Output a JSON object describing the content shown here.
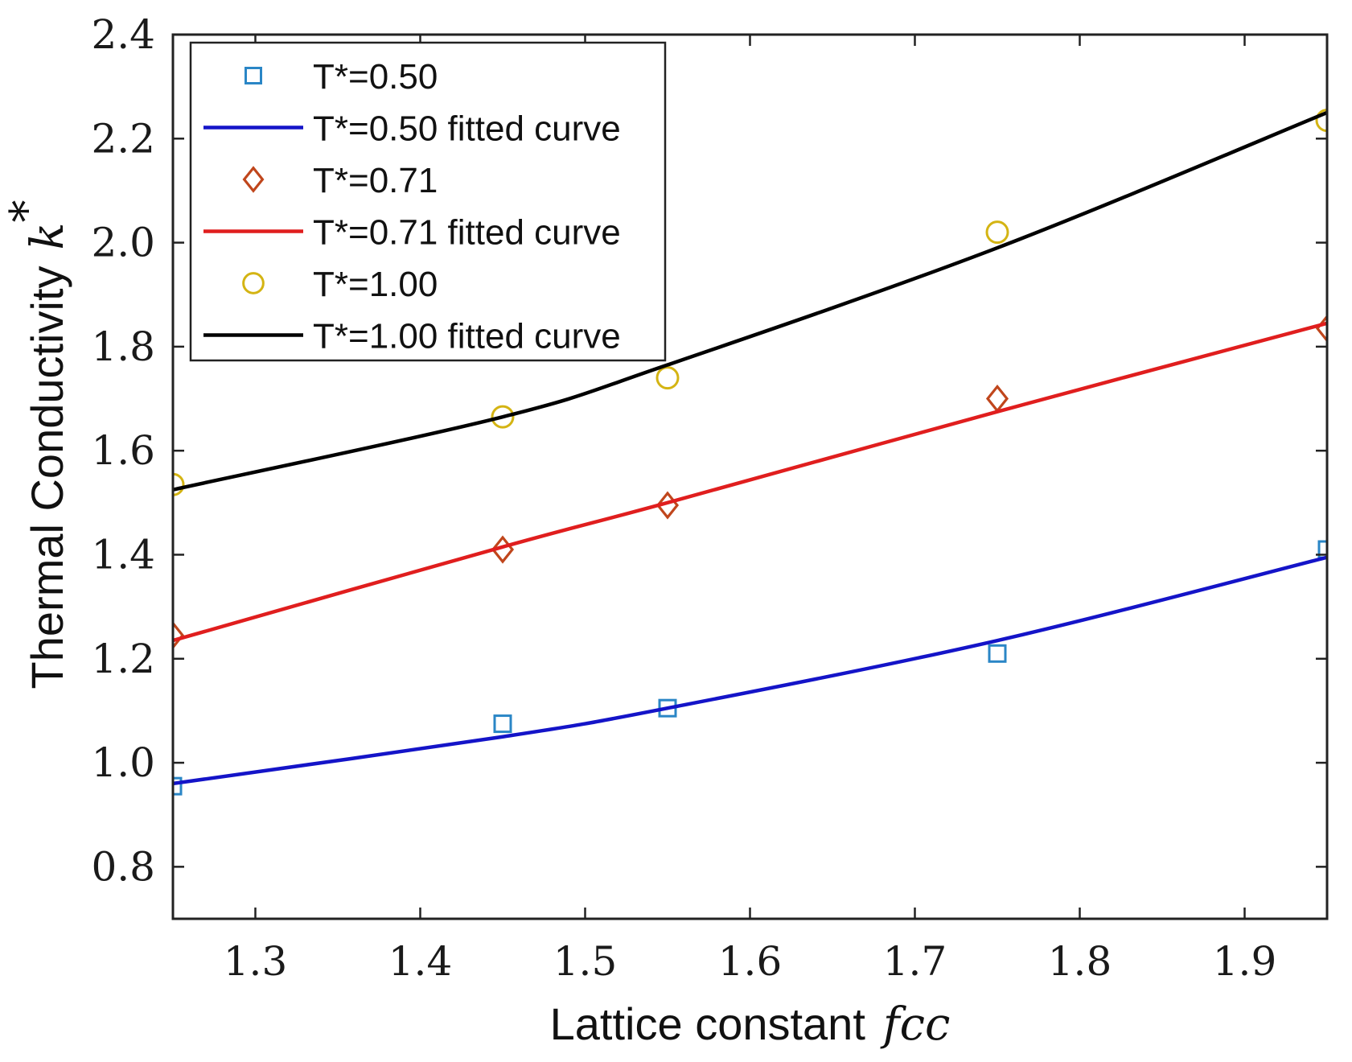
{
  "chart_data": {
    "type": "scatter",
    "xlabel": "Lattice constant",
    "xlabel_var": "fcc",
    "ylabel": "Thermal Conductivity",
    "ylabel_var": "k",
    "ylabel_superscript": "*",
    "xlim": [
      1.25,
      1.95
    ],
    "ylim": [
      0.7,
      2.4
    ],
    "xticks": [
      1.3,
      1.4,
      1.5,
      1.6,
      1.7,
      1.8,
      1.9
    ],
    "xtick_labels": [
      "1.3",
      "1.4",
      "1.5",
      "1.6",
      "1.7",
      "1.8",
      "1.9"
    ],
    "yticks": [
      0.8,
      1.0,
      1.2,
      1.4,
      1.6,
      1.8,
      2.0,
      2.2,
      2.4
    ],
    "ytick_labels": [
      "0.8",
      "1.0",
      "1.2",
      "1.4",
      "1.6",
      "1.8",
      "2.0",
      "2.2",
      "2.4"
    ],
    "grid": false,
    "legend_position": "top-left",
    "series": [
      {
        "name": "T*=0.50",
        "kind": "markers",
        "marker": "square",
        "color": "#2a86c6",
        "x": [
          1.25,
          1.45,
          1.55,
          1.75,
          1.95
        ],
        "y": [
          0.955,
          1.075,
          1.105,
          1.21,
          1.41
        ]
      },
      {
        "name": "T*=0.50 fitted curve",
        "kind": "line",
        "color": "#1414c8",
        "x": [
          1.25,
          1.45,
          1.55,
          1.75,
          1.95
        ],
        "y": [
          0.96,
          1.05,
          1.105,
          1.235,
          1.395
        ]
      },
      {
        "name": "T*=0.71",
        "kind": "markers",
        "marker": "diamond",
        "color": "#c0461c",
        "x": [
          1.25,
          1.45,
          1.55,
          1.75,
          1.95
        ],
        "y": [
          1.245,
          1.41,
          1.495,
          1.7,
          1.835
        ]
      },
      {
        "name": "T*=0.71 fitted curve",
        "kind": "line",
        "color": "#e01e1e",
        "x": [
          1.25,
          1.45,
          1.55,
          1.75,
          1.95
        ],
        "y": [
          1.235,
          1.415,
          1.5,
          1.675,
          1.845
        ]
      },
      {
        "name": "T*=1.00",
        "kind": "markers",
        "marker": "circle",
        "color": "#d4b413",
        "x": [
          1.25,
          1.45,
          1.55,
          1.75,
          1.95
        ],
        "y": [
          1.535,
          1.665,
          1.74,
          2.02,
          2.235
        ]
      },
      {
        "name": "T*=1.00 fitted curve",
        "kind": "line",
        "color": "#000000",
        "x": [
          1.25,
          1.45,
          1.55,
          1.75,
          1.95
        ],
        "y": [
          1.525,
          1.665,
          1.765,
          1.99,
          2.25
        ]
      }
    ]
  }
}
